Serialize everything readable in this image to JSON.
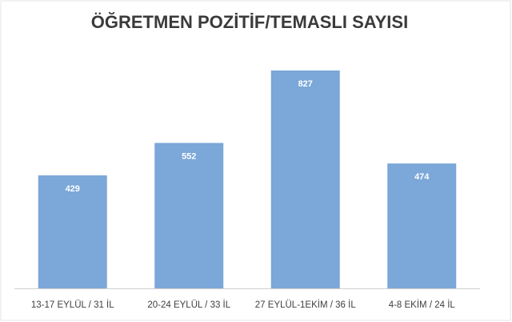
{
  "chart_data": {
    "type": "bar",
    "title": "ÖĞRETMEN POZİTİF/TEMASLI SAYISI",
    "categories": [
      "13-17 EYLÜL / 31 İL",
      "20-24 EYLÜL / 33 İL",
      "27 EYLÜL-1EKİM / 36 İL",
      "4-8 EKİM / 24 İL"
    ],
    "values": [
      429,
      552,
      827,
      474
    ],
    "color": "#7ba7d9"
  }
}
